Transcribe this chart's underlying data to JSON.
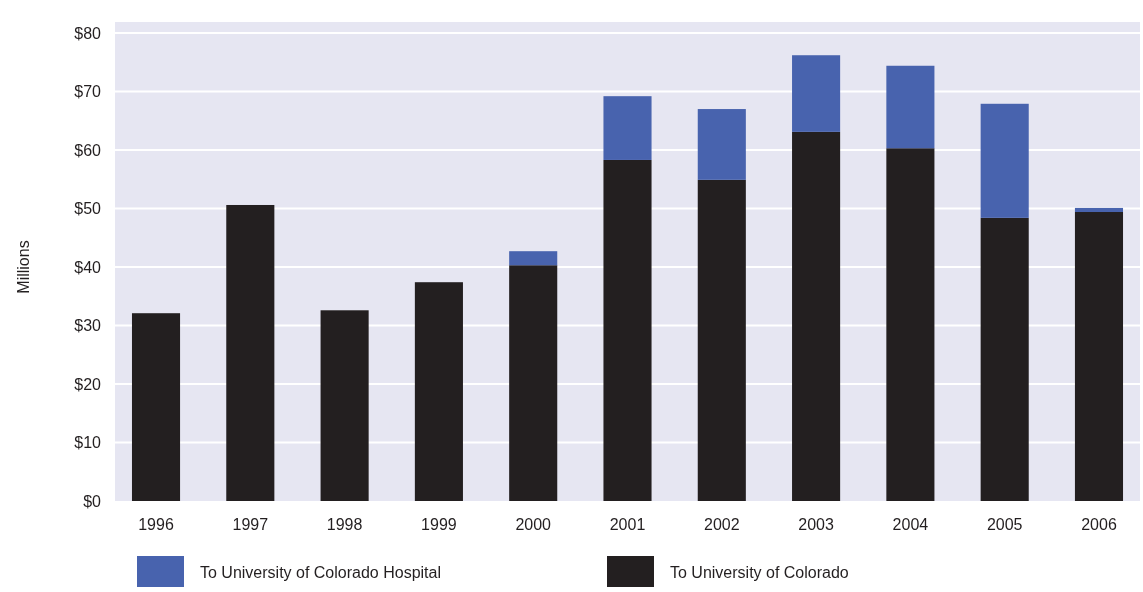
{
  "chart_data": {
    "type": "bar",
    "stacked": true,
    "ylabel": "Millions",
    "categories": [
      "1996",
      "1997",
      "1998",
      "1999",
      "2000",
      "2001",
      "2002",
      "2003",
      "2004",
      "2005",
      "2006"
    ],
    "series": [
      {
        "name": "To University of Colorado",
        "color": "#231f20",
        "values": [
          32.1,
          50.6,
          32.6,
          37.4,
          40.3,
          58.3,
          54.9,
          63.1,
          60.3,
          48.4,
          49.4
        ]
      },
      {
        "name": "To University of Colorado Hospital",
        "color": "#4863ae",
        "values": [
          0,
          0,
          0,
          0,
          2.4,
          10.9,
          12.1,
          13.1,
          14.1,
          19.5,
          0.7
        ]
      }
    ],
    "ylim": [
      0,
      80
    ],
    "yticks": [
      {
        "value": 0,
        "label": "$0"
      },
      {
        "value": 10,
        "label": "$10"
      },
      {
        "value": 20,
        "label": "$20"
      },
      {
        "value": 30,
        "label": "$30"
      },
      {
        "value": 40,
        "label": "$40"
      },
      {
        "value": 50,
        "label": "$50"
      },
      {
        "value": 60,
        "label": "$60"
      },
      {
        "value": 70,
        "label": "$70"
      },
      {
        "value": 80,
        "label": "$80"
      }
    ],
    "grid": "y",
    "legend": "bottom"
  }
}
